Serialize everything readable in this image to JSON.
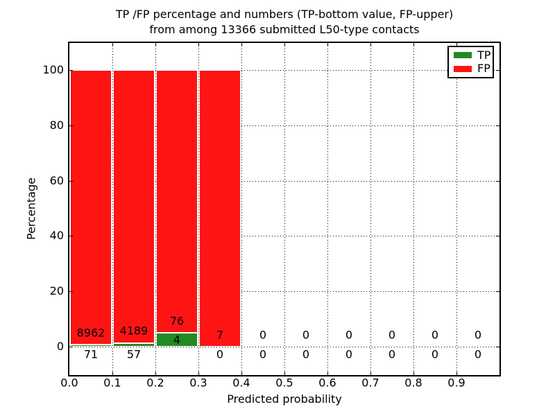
{
  "title": {
    "line1": "TP /FP percentage and numbers (TP-bottom value, FP-upper)",
    "line2": "from among 13366 submitted L50-type contacts"
  },
  "axes": {
    "xlabel": "Predicted probability",
    "ylabel": "Percentage",
    "x_ticks": [
      "0.0",
      "0.1",
      "0.2",
      "0.3",
      "0.4",
      "0.5",
      "0.6",
      "0.7",
      "0.8",
      "0.9"
    ],
    "y_ticks": [
      "0",
      "20",
      "40",
      "60",
      "80",
      "100"
    ]
  },
  "legend": {
    "items": [
      {
        "label": "TP",
        "color": "#228b22"
      },
      {
        "label": "FP",
        "color": "#ff1414"
      }
    ]
  },
  "colors": {
    "tp": "#228b22",
    "fp": "#ff1414",
    "grid": "#000000",
    "background": "#ffffff"
  },
  "chart_data": {
    "type": "bar",
    "stacked": true,
    "title": "TP /FP percentage and numbers (TP-bottom value, FP-upper) from among 13366 submitted L50-type contacts",
    "xlabel": "Predicted probability",
    "ylabel": "Percentage",
    "total_contacts": 13366,
    "bin_edges": [
      0.0,
      0.1,
      0.2,
      0.3,
      0.4,
      0.5,
      0.6,
      0.7,
      0.8,
      0.9,
      1.0
    ],
    "x_tick_values": [
      0.0,
      0.1,
      0.2,
      0.3,
      0.4,
      0.5,
      0.6,
      0.7,
      0.8,
      0.9
    ],
    "y_tick_values": [
      0,
      20,
      40,
      60,
      80,
      100
    ],
    "ylim": [
      -10.3,
      109.8
    ],
    "grid": "dotted",
    "legend_position": "upper right",
    "series": [
      {
        "name": "TP",
        "counts": [
          71,
          57,
          4,
          0,
          0,
          0,
          0,
          0,
          0,
          0
        ],
        "pct": [
          0.79,
          1.34,
          5.0,
          0,
          0,
          0,
          0,
          0,
          0,
          0
        ]
      },
      {
        "name": "FP",
        "counts": [
          8962,
          4189,
          76,
          7,
          0,
          0,
          0,
          0,
          0,
          0
        ],
        "pct": [
          99.21,
          98.66,
          95.0,
          100.0,
          0,
          0,
          0,
          0,
          0,
          0
        ]
      }
    ]
  }
}
